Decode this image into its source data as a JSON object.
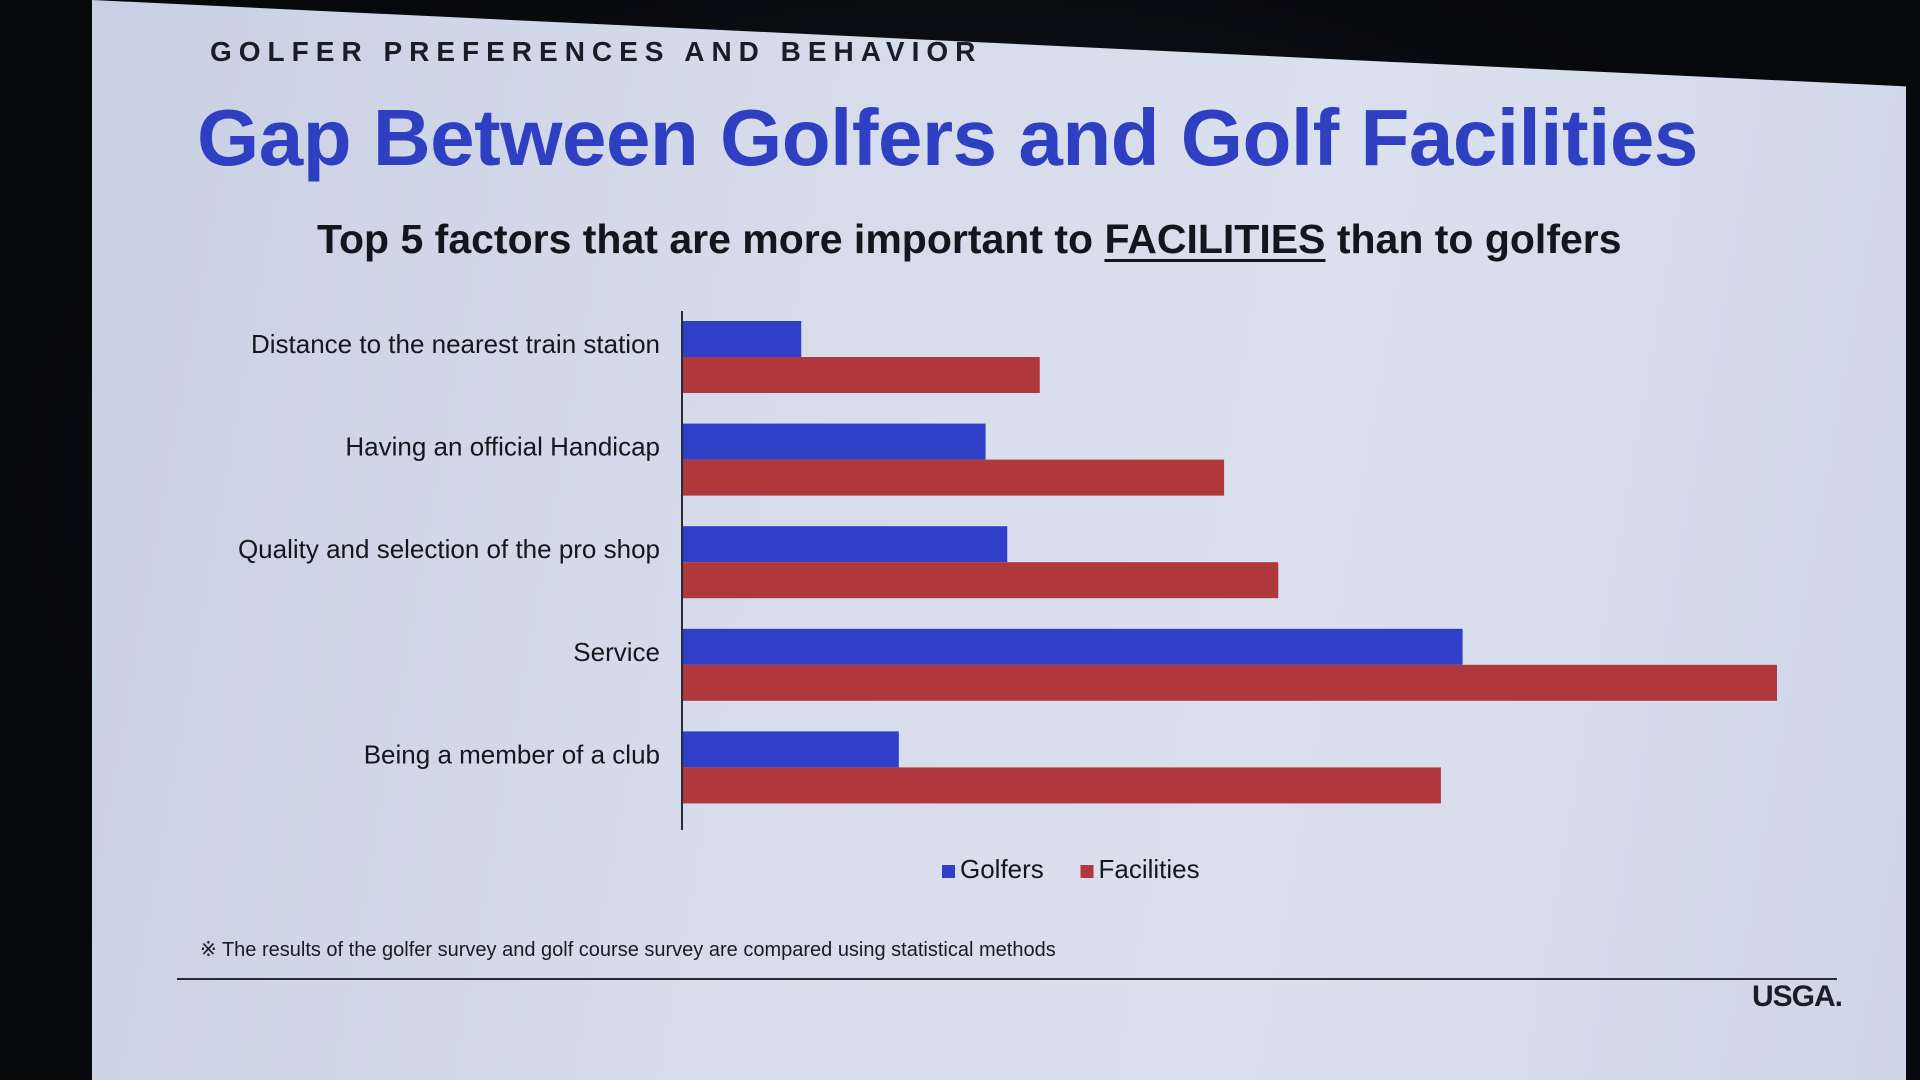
{
  "slide": {
    "eyebrow": "GOLFER PREFERENCES AND BEHAVIOR",
    "title": "Gap Between Golfers and Golf Facilities",
    "subtitle_pre": "Top 5 factors that are more important to ",
    "subtitle_emph": "FACILITIES",
    "subtitle_post": " than to golfers",
    "footnote": "※ The results of the golfer survey and golf course survey are compared using statistical methods",
    "logo": "USGA."
  },
  "colors": {
    "golfers": "#2f3fc7",
    "facilities": "#b0383c",
    "axis": "#2a2c33",
    "label": "#15171e"
  },
  "chart_data": {
    "type": "bar",
    "orientation": "horizontal",
    "categories": [
      "Distance to the nearest train station",
      "Having an official Handicap",
      "Quality and selection of the pro shop",
      "Service",
      "Being a member of a club"
    ],
    "series": [
      {
        "name": "Golfers",
        "values": [
          11,
          28,
          30,
          72,
          20
        ]
      },
      {
        "name": "Facilities",
        "values": [
          33,
          50,
          55,
          101,
          70
        ]
      }
    ],
    "xlim": [
      0,
      101
    ],
    "grid": false,
    "legend": "bottom",
    "title": "",
    "xlabel": "",
    "ylabel": ""
  }
}
